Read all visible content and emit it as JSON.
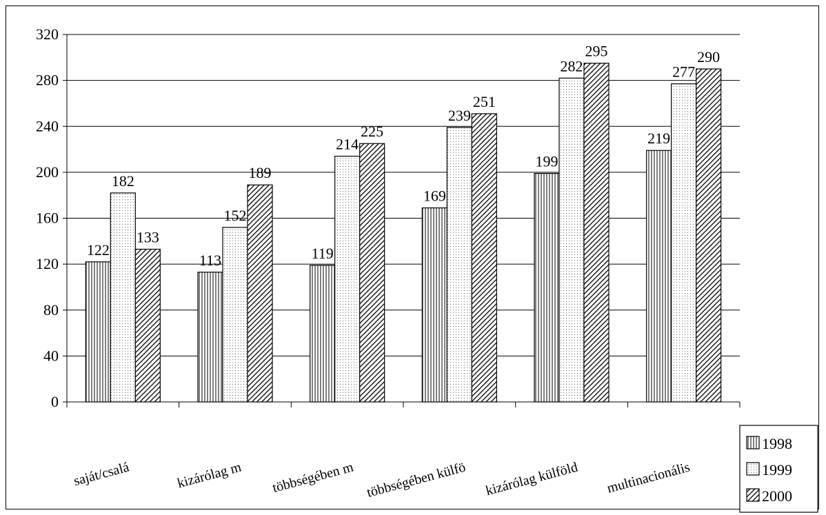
{
  "chart_data": {
    "type": "bar",
    "categories": [
      "saját/csalá",
      "kizárólag m",
      "többségében m",
      "többségében külfö",
      "kizárólag külföld",
      "multinacionális"
    ],
    "series": [
      {
        "name": "1998",
        "values": [
          122,
          113,
          119,
          169,
          199,
          219
        ],
        "pattern": "vertical-lines"
      },
      {
        "name": "1999",
        "values": [
          182,
          152,
          214,
          239,
          282,
          277
        ],
        "pattern": "dots"
      },
      {
        "name": "2000",
        "values": [
          133,
          189,
          225,
          251,
          295,
          290
        ],
        "pattern": "diagonal-hatch"
      }
    ],
    "ylim": [
      0,
      320
    ],
    "yticks": [
      "0",
      "40",
      "80",
      "120",
      "160",
      "200",
      "240",
      "280",
      "320"
    ],
    "grid": true,
    "legend": "bottom-right",
    "title": "",
    "xlabel": "",
    "ylabel": ""
  }
}
